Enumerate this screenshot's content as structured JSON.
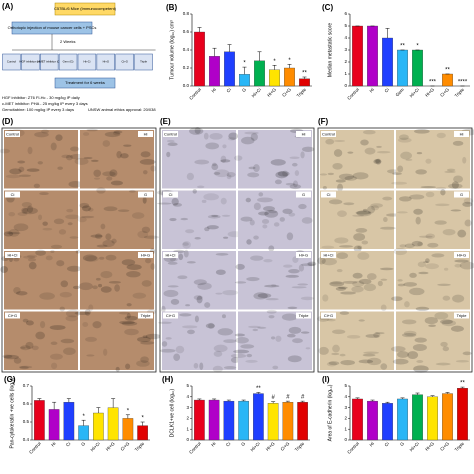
{
  "diagram": {
    "panel": "(A)",
    "title": "C57BL/6 Mice (Immunocompetent)",
    "step1": "Orthotopic injection of mouse cancer cells + PSCs",
    "interval": "2 Weeks",
    "groups": [
      "Control",
      "HGF inhibitor (Hi)",
      "c-MET inhibitor (Ci)",
      "Gem (G)",
      "Hi+Ci",
      "Hi+G",
      "Ci+G",
      "Triple"
    ],
    "treatment": "Treatment for 6 weeks",
    "notes": [
      "HGF inhibitor: ZT6 Fl-Hc - 30 mg/kg IP daily",
      "c-MET inhibitor: PHA - 25 mg/kg IP every 3 days",
      "Gemcitabine: 100 mg/kg IP every 3 days"
    ],
    "ethics": "UNSW animal ethics approval: 20/038"
  },
  "chart_data": [
    {
      "type": "bar",
      "panel": "(B)",
      "ylabel": "Tumour volume (log₁₀) cm³",
      "categories": [
        "Control",
        "Hi",
        "Ci",
        "G",
        "Hi+Ci",
        "Hi+G",
        "Ci+G",
        "Triple"
      ],
      "values": [
        0.6,
        0.33,
        0.38,
        0.13,
        0.28,
        0.18,
        0.2,
        0.08
      ],
      "errors": [
        0.05,
        0.09,
        0.08,
        0.08,
        0.1,
        0.05,
        0.04,
        0.02
      ],
      "annotations": [
        null,
        null,
        null,
        "*",
        null,
        "*",
        "*",
        "**"
      ],
      "colors": [
        "#e8001c",
        "#b000c8",
        "#1f3fff",
        "#29b6f6",
        "#00b050",
        "#ffe400",
        "#ff8c00",
        "#e00000"
      ],
      "ylim": [
        0,
        0.8
      ],
      "yticks": [
        {
          "value": 0,
          "label": "0.0"
        },
        0.2,
        0.4,
        0.6,
        0.8
      ]
    },
    {
      "type": "bar",
      "panel": "(C)",
      "ylabel": "Median metastatic score",
      "categories": [
        "Control",
        "Hi",
        "Ci",
        "Gem",
        "Hi+Ci",
        "Hi+G",
        "Ci+G",
        "Triple"
      ],
      "values": [
        5,
        5,
        4,
        3,
        3,
        0,
        1,
        0
      ],
      "errors": [
        0,
        0,
        0.8,
        0,
        0,
        0,
        0,
        0
      ],
      "annotations": [
        null,
        null,
        null,
        "**",
        "*",
        "***",
        "**",
        "****"
      ],
      "colors": [
        "#e8001c",
        "#b000c8",
        "#1f3fff",
        "#29b6f6",
        "#00b050",
        "#ffe400",
        "#ff8c00",
        "#e00000"
      ],
      "ylim": [
        0,
        6
      ],
      "yticks": [
        0,
        1,
        2,
        3,
        4,
        5,
        6
      ]
    },
    {
      "type": "bar",
      "panel": "(G)",
      "ylabel": "Pan-cytokeratin +ve cells (log₁₀)",
      "categories": [
        "Control",
        "Hi",
        "Ci",
        "G",
        "Hi+Ci",
        "Hi+G",
        "Ci+G",
        "Triple"
      ],
      "values": [
        0.62,
        0.57,
        0.61,
        0.48,
        0.55,
        0.58,
        0.52,
        0.48
      ],
      "errors": [
        0.01,
        0.04,
        0.02,
        0.03,
        0.03,
        0.05,
        0.02,
        0.02
      ],
      "annotations": [
        null,
        null,
        null,
        "*",
        null,
        null,
        "*",
        "*"
      ],
      "colors": [
        "#e8001c",
        "#b000c8",
        "#1f3fff",
        "#29b6f6",
        "#ffe400",
        "#ffe400",
        "#ff8c00",
        "#e00000"
      ],
      "ylim": [
        0.4,
        0.7
      ],
      "yticks": [
        0.4,
        0.5,
        0.6,
        0.7
      ]
    },
    {
      "type": "bar",
      "panel": "(H)",
      "ylabel": "DCLK1+ve cell (log₁₀)",
      "categories": [
        "Control",
        "Hi",
        "Ci",
        "G",
        "Hi+Ci",
        "Hi+G",
        "Ci+G",
        "Triple"
      ],
      "values": [
        3.7,
        3.7,
        3.6,
        3.6,
        4.3,
        3.4,
        3.5,
        3.5
      ],
      "errors": [
        0.1,
        0.1,
        0.1,
        0.1,
        0.1,
        0.15,
        0.1,
        0.1
      ],
      "annotations": [
        null,
        null,
        null,
        null,
        "**",
        "#",
        "#",
        "#"
      ],
      "colors": [
        "#e8001c",
        "#b000c8",
        "#1f3fff",
        "#29b6f6",
        "#1f3fff",
        "#ffe400",
        "#ff8c00",
        "#e00000"
      ],
      "ylim": [
        0,
        5
      ],
      "yticks": [
        0,
        1,
        2,
        3,
        4,
        5
      ]
    },
    {
      "type": "bar",
      "panel": "(I)",
      "ylabel": "Area of E-cadherin (log₁₀)",
      "categories": [
        "Control",
        "Hi",
        "Ci",
        "G",
        "Hi+Ci",
        "Hi+G",
        "Ci+G",
        "Triple"
      ],
      "values": [
        3.8,
        3.6,
        3.4,
        3.8,
        4.2,
        4.0,
        4.3,
        4.8
      ],
      "errors": [
        0.1,
        0.1,
        0.1,
        0.1,
        0.15,
        0.1,
        0.1,
        0.1
      ],
      "annotations": [
        null,
        null,
        null,
        null,
        null,
        null,
        null,
        "**"
      ],
      "colors": [
        "#e8001c",
        "#b000c8",
        "#1f3fff",
        "#29b6f6",
        "#00b050",
        "#ffe400",
        "#ff8c00",
        "#e00000"
      ],
      "ylim": [
        0,
        5
      ],
      "yticks": [
        0,
        1,
        2,
        3,
        4,
        5
      ]
    }
  ],
  "micrographs": [
    {
      "panel": "(D)",
      "color": "#b58c6c",
      "labels": [
        "Control",
        "Hi",
        "Ci",
        "G",
        "Hi+Ci",
        "Hi+G",
        "Ci+G",
        "Triple"
      ]
    },
    {
      "panel": "(E)",
      "color": "#c8c3d6",
      "labels": [
        "Control",
        "Hi",
        "Ci",
        "G",
        "Hi+Ci",
        "Hi+G",
        "Ci+G",
        "Triple"
      ]
    },
    {
      "panel": "(F)",
      "color": "#d8c6a6",
      "labels": [
        "Control",
        "Hi",
        "Ci",
        "G",
        "Hi+Ci",
        "Hi+G",
        "Ci+G",
        "Triple"
      ]
    }
  ]
}
